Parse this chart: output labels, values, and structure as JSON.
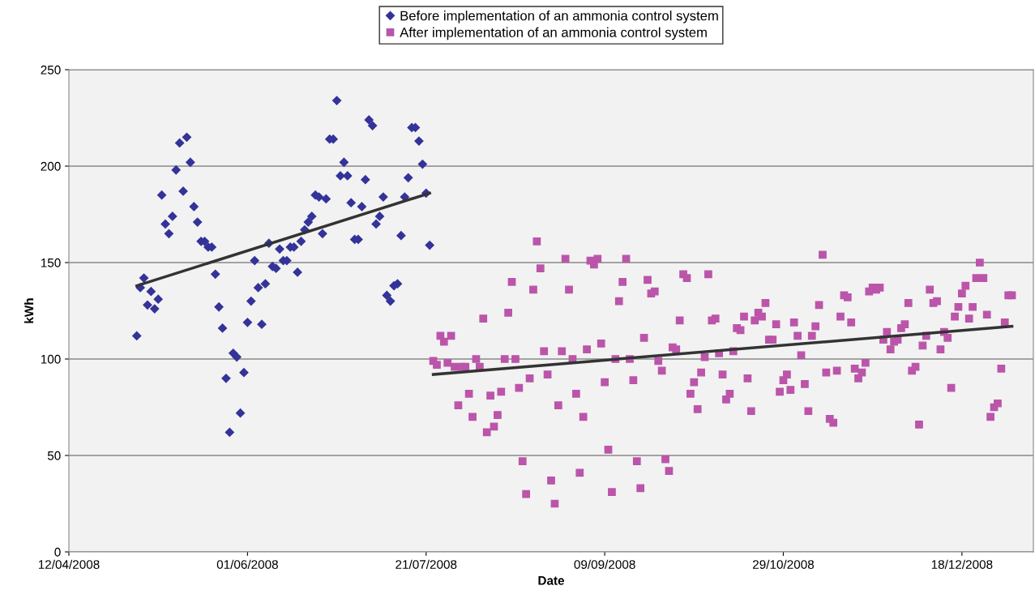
{
  "chart_data": {
    "type": "scatter",
    "xlabel": "Date",
    "ylabel": "kWh",
    "xlim": [
      "2008-04-12",
      "2009-01-07"
    ],
    "xticks": [
      {
        "value": "2008-04-12",
        "label": "12/04/2008"
      },
      {
        "value": "2008-06-01",
        "label": "01/06/2008"
      },
      {
        "value": "2008-07-21",
        "label": "21/07/2008"
      },
      {
        "value": "2008-09-09",
        "label": "09/09/2008"
      },
      {
        "value": "2008-10-29",
        "label": "29/10/2008"
      },
      {
        "value": "2008-12-18",
        "label": "18/12/2008"
      }
    ],
    "ylim": [
      0,
      250
    ],
    "yticks": [
      0,
      50,
      100,
      150,
      200,
      250
    ],
    "grid": "y",
    "legend": "top",
    "series": [
      {
        "name": "Before implementation of an ammonia control system",
        "marker": "diamond",
        "color": "#333399",
        "x": [
          "2008-05-01",
          "2008-05-02",
          "2008-05-03",
          "2008-05-04",
          "2008-05-05",
          "2008-05-06",
          "2008-05-07",
          "2008-05-08",
          "2008-05-09",
          "2008-05-10",
          "2008-05-11",
          "2008-05-12",
          "2008-05-13",
          "2008-05-14",
          "2008-05-15",
          "2008-05-16",
          "2008-05-17",
          "2008-05-18",
          "2008-05-19",
          "2008-05-20",
          "2008-05-21",
          "2008-05-22",
          "2008-05-23",
          "2008-05-24",
          "2008-05-25",
          "2008-05-26",
          "2008-05-27",
          "2008-05-28",
          "2008-05-29",
          "2008-05-30",
          "2008-05-31",
          "2008-06-01",
          "2008-06-02",
          "2008-06-03",
          "2008-06-04",
          "2008-06-05",
          "2008-06-06",
          "2008-06-07",
          "2008-06-08",
          "2008-06-09",
          "2008-06-10",
          "2008-06-11",
          "2008-06-12",
          "2008-06-13",
          "2008-06-14",
          "2008-06-15",
          "2008-06-16",
          "2008-06-17",
          "2008-06-18",
          "2008-06-19",
          "2008-06-20",
          "2008-06-21",
          "2008-06-22",
          "2008-06-23",
          "2008-06-24",
          "2008-06-25",
          "2008-06-26",
          "2008-06-27",
          "2008-06-28",
          "2008-06-29",
          "2008-06-30",
          "2008-07-01",
          "2008-07-02",
          "2008-07-03",
          "2008-07-04",
          "2008-07-05",
          "2008-07-06",
          "2008-07-07",
          "2008-07-08",
          "2008-07-09",
          "2008-07-10",
          "2008-07-11",
          "2008-07-12",
          "2008-07-13",
          "2008-07-14",
          "2008-07-15",
          "2008-07-16",
          "2008-07-17",
          "2008-07-18",
          "2008-07-19",
          "2008-07-20",
          "2008-07-21",
          "2008-07-22"
        ],
        "values": [
          112,
          137,
          142,
          128,
          135,
          126,
          131,
          185,
          170,
          165,
          174,
          198,
          212,
          187,
          215,
          202,
          179,
          171,
          161,
          161,
          158,
          158,
          144,
          127,
          116,
          90,
          62,
          103,
          101,
          72,
          93,
          119,
          130,
          151,
          137,
          118,
          139,
          160,
          148,
          147,
          157,
          151,
          151,
          158,
          158,
          145,
          161,
          167,
          171,
          174,
          185,
          184,
          165,
          183,
          214,
          214,
          234,
          195,
          202,
          195,
          181,
          162,
          162,
          179,
          193,
          224,
          221,
          170,
          174,
          184,
          133,
          130,
          138,
          139,
          164,
          184,
          194,
          220,
          220,
          213,
          201,
          186,
          159
        ]
      },
      {
        "name": "After implementation of an ammonia control system",
        "marker": "square",
        "color": "#bb55aa",
        "x": [
          "2008-07-23",
          "2008-07-24",
          "2008-07-25",
          "2008-07-26",
          "2008-07-27",
          "2008-07-28",
          "2008-07-29",
          "2008-07-30",
          "2008-07-31",
          "2008-08-01",
          "2008-08-02",
          "2008-08-03",
          "2008-08-04",
          "2008-08-05",
          "2008-08-06",
          "2008-08-07",
          "2008-08-08",
          "2008-08-09",
          "2008-08-10",
          "2008-08-11",
          "2008-08-12",
          "2008-08-13",
          "2008-08-14",
          "2008-08-15",
          "2008-08-16",
          "2008-08-17",
          "2008-08-18",
          "2008-08-19",
          "2008-08-20",
          "2008-08-21",
          "2008-08-22",
          "2008-08-23",
          "2008-08-24",
          "2008-08-25",
          "2008-08-26",
          "2008-08-27",
          "2008-08-28",
          "2008-08-29",
          "2008-08-30",
          "2008-08-31",
          "2008-09-01",
          "2008-09-02",
          "2008-09-03",
          "2008-09-04",
          "2008-09-05",
          "2008-09-06",
          "2008-09-07",
          "2008-09-08",
          "2008-09-09",
          "2008-09-10",
          "2008-09-11",
          "2008-09-12",
          "2008-09-13",
          "2008-09-14",
          "2008-09-15",
          "2008-09-16",
          "2008-09-17",
          "2008-09-18",
          "2008-09-19",
          "2008-09-20",
          "2008-09-21",
          "2008-09-22",
          "2008-09-23",
          "2008-09-24",
          "2008-09-25",
          "2008-09-26",
          "2008-09-27",
          "2008-09-28",
          "2008-09-29",
          "2008-09-30",
          "2008-10-01",
          "2008-10-02",
          "2008-10-03",
          "2008-10-04",
          "2008-10-05",
          "2008-10-06",
          "2008-10-07",
          "2008-10-08",
          "2008-10-09",
          "2008-10-10",
          "2008-10-11",
          "2008-10-12",
          "2008-10-13",
          "2008-10-14",
          "2008-10-15",
          "2008-10-16",
          "2008-10-17",
          "2008-10-18",
          "2008-10-19",
          "2008-10-20",
          "2008-10-21",
          "2008-10-22",
          "2008-10-23",
          "2008-10-24",
          "2008-10-25",
          "2008-10-26",
          "2008-10-27",
          "2008-10-28",
          "2008-10-29",
          "2008-10-30",
          "2008-10-31",
          "2008-11-01",
          "2008-11-02",
          "2008-11-03",
          "2008-11-04",
          "2008-11-05",
          "2008-11-06",
          "2008-11-07",
          "2008-11-08",
          "2008-11-09",
          "2008-11-10",
          "2008-11-11",
          "2008-11-12",
          "2008-11-13",
          "2008-11-14",
          "2008-11-15",
          "2008-11-16",
          "2008-11-17",
          "2008-11-18",
          "2008-11-19",
          "2008-11-20",
          "2008-11-21",
          "2008-11-22",
          "2008-11-23",
          "2008-11-24",
          "2008-11-25",
          "2008-11-26",
          "2008-11-27",
          "2008-11-28",
          "2008-11-29",
          "2008-11-30",
          "2008-12-01",
          "2008-12-02",
          "2008-12-03",
          "2008-12-04",
          "2008-12-05",
          "2008-12-06",
          "2008-12-07",
          "2008-12-08",
          "2008-12-09",
          "2008-12-10",
          "2008-12-11",
          "2008-12-12",
          "2008-12-13",
          "2008-12-14",
          "2008-12-15",
          "2008-12-16",
          "2008-12-17",
          "2008-12-18",
          "2008-12-19",
          "2008-12-20",
          "2008-12-21",
          "2008-12-22",
          "2008-12-23",
          "2008-12-24",
          "2008-12-25",
          "2008-12-26",
          "2008-12-27",
          "2008-12-28",
          "2008-12-29",
          "2008-12-30",
          "2008-12-31",
          "2009-01-01"
        ],
        "values": [
          99,
          97,
          112,
          109,
          98,
          112,
          96,
          76,
          96,
          96,
          82,
          70,
          100,
          96,
          121,
          62,
          81,
          65,
          71,
          83,
          100,
          124,
          140,
          100,
          85,
          47,
          30,
          90,
          136,
          161,
          147,
          104,
          92,
          37,
          25,
          76,
          104,
          152,
          136,
          100,
          82,
          41,
          70,
          105,
          151,
          149,
          152,
          108,
          88,
          53,
          31,
          100,
          130,
          140,
          152,
          100,
          89,
          47,
          33,
          111,
          141,
          134,
          135,
          99,
          94,
          48,
          42,
          106,
          105,
          120,
          144,
          142,
          82,
          88,
          74,
          93,
          101,
          144,
          120,
          121,
          103,
          92,
          79,
          82,
          104,
          116,
          115,
          122,
          90,
          73,
          120,
          124,
          122,
          129,
          110,
          110,
          118,
          83,
          89,
          92,
          84,
          119,
          112,
          102,
          87,
          73,
          112,
          117,
          128,
          154,
          93,
          69,
          67,
          94,
          122,
          133,
          132,
          119,
          95,
          90,
          93,
          98,
          135,
          137,
          136,
          137,
          110,
          114,
          105,
          109,
          110,
          116,
          118,
          129,
          94,
          96,
          66,
          107,
          112,
          136,
          129,
          130,
          105,
          114,
          111,
          85,
          122,
          127,
          134,
          138,
          121,
          127,
          142,
          150,
          142,
          123,
          70,
          75,
          77,
          95,
          119,
          133,
          133
        ]
      },
      {
        "type": "line",
        "color": "#333333",
        "x": [
          "2008-05-01",
          "2008-07-22"
        ],
        "values": [
          138,
          186
        ]
      },
      {
        "type": "line",
        "color": "#333333",
        "x": [
          "2008-07-23",
          "2009-01-01"
        ],
        "values": [
          92,
          117
        ]
      }
    ]
  }
}
